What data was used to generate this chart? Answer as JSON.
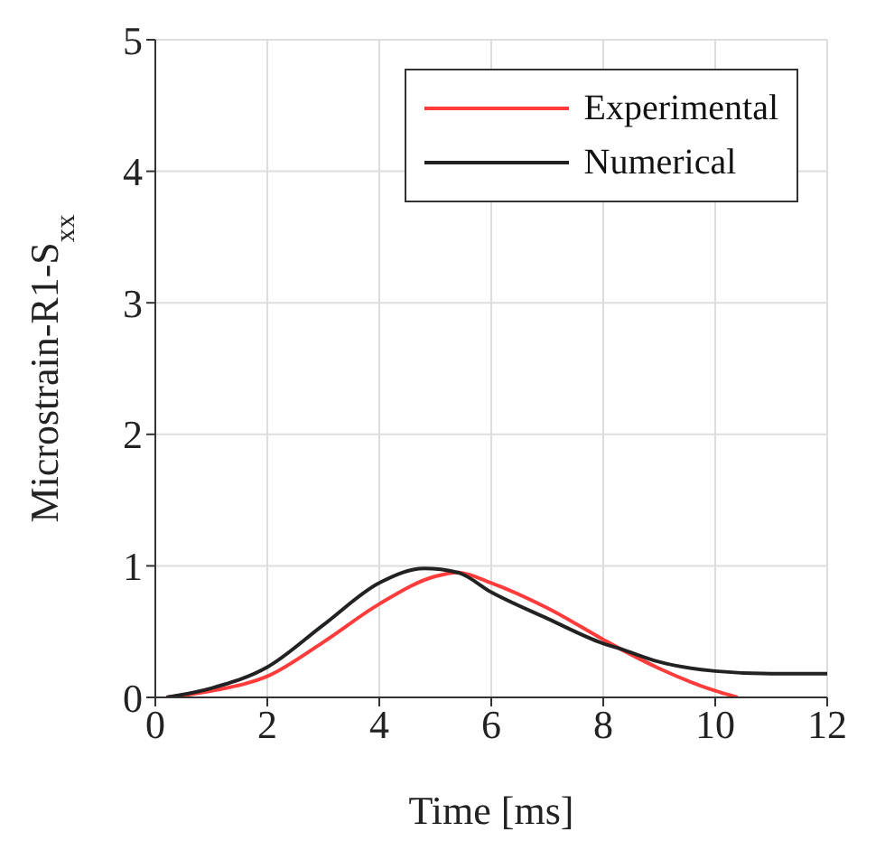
{
  "chart_data": {
    "type": "line",
    "xlabel": "Time [ms]",
    "ylabel": "Microstrain-R1-S$_{xx}$",
    "xlim": [
      0,
      12
    ],
    "xticks": [
      0,
      2,
      4,
      6,
      8,
      10,
      12
    ],
    "ylim": [
      0,
      5
    ],
    "yticks": [
      0,
      1,
      2,
      3,
      4,
      5
    ],
    "grid": true,
    "legend": "top right",
    "line_style": "solid",
    "marker": "none",
    "series": [
      {
        "name": "Experimental",
        "color": "#ff3b3b",
        "x": [
          0.2,
          1,
          2,
          3,
          4,
          5,
          5.4,
          6,
          7,
          8,
          8.3,
          9,
          10,
          10.4
        ],
        "values": [
          0,
          0.05,
          0.16,
          0.42,
          0.71,
          0.92,
          0.95,
          0.87,
          0.68,
          0.44,
          0.37,
          0.22,
          0.05,
          0
        ]
      },
      {
        "name": "Numerical",
        "color": "#222222",
        "x": [
          0.2,
          1,
          2,
          3,
          4,
          4.8,
          5.4,
          6,
          7,
          8,
          8.3,
          9,
          10,
          11,
          12
        ],
        "values": [
          0,
          0.07,
          0.23,
          0.55,
          0.87,
          0.98,
          0.95,
          0.8,
          0.6,
          0.41,
          0.37,
          0.27,
          0.2,
          0.18,
          0.18
        ]
      }
    ]
  }
}
